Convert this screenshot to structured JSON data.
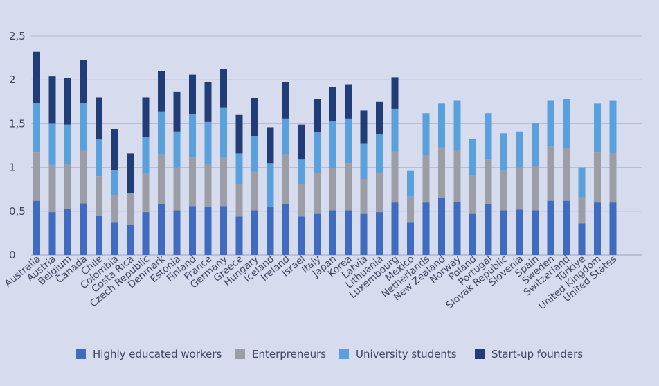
{
  "chart_data": {
    "type": "bar",
    "stacked": true,
    "title": "",
    "xlabel": "",
    "ylabel": "",
    "ylim": [
      0,
      2.5
    ],
    "yticks": [
      "0",
      "0,5",
      "1",
      "1,5",
      "2",
      "2,5"
    ],
    "ytick_values": [
      0,
      0.5,
      1,
      1.5,
      2,
      2.5
    ],
    "grid": true,
    "legend_position": "bottom",
    "categories": [
      "Australia",
      "Austria",
      "Belgium",
      "Canada",
      "Chile",
      "Colombia",
      "Costa Rica",
      "Czech Republic",
      "Denmark",
      "Estonia",
      "Finland",
      "France",
      "Germany",
      "Greece",
      "Hungary",
      "Iceland",
      "Ireland",
      "Israel",
      "Italy",
      "Japan",
      "Korea",
      "Latvia",
      "Lithuania",
      "Luxembourg",
      "Mexico",
      "Netherlands",
      "New Zealand",
      "Norway",
      "Poland",
      "Portugal",
      "Slovak Republic",
      "Slovenia",
      "Spain",
      "Sweden",
      "Switzerland",
      "Türkiye",
      "United Kingdom",
      "United States"
    ],
    "series": [
      {
        "name": "Highly educated workers",
        "color": "#3f6bc0",
        "values": [
          0.62,
          0.49,
          0.53,
          0.59,
          0.45,
          0.37,
          0.35,
          0.49,
          0.58,
          0.51,
          0.56,
          0.55,
          0.56,
          0.44,
          0.51,
          0.55,
          0.58,
          0.44,
          0.47,
          0.51,
          0.51,
          0.47,
          0.49,
          0.6,
          0.37,
          0.6,
          0.65,
          0.61,
          0.47,
          0.58,
          0.51,
          0.52,
          0.51,
          0.62,
          0.62,
          0.36,
          0.6,
          0.6
        ]
      },
      {
        "name": "Enterpreneurs",
        "color": "#9c9ea7",
        "values": [
          0.55,
          0.54,
          0.51,
          0.6,
          0.45,
          0.31,
          0.36,
          0.44,
          0.57,
          0.49,
          0.56,
          0.49,
          0.55,
          0.37,
          0.44,
          0.0,
          0.57,
          0.37,
          0.47,
          0.48,
          0.54,
          0.4,
          0.45,
          0.58,
          0.3,
          0.54,
          0.58,
          0.59,
          0.44,
          0.51,
          0.45,
          0.48,
          0.51,
          0.62,
          0.6,
          0.3,
          0.57,
          0.56
        ]
      },
      {
        "name": "University students",
        "color": "#5aa0dc",
        "values": [
          0.57,
          0.47,
          0.45,
          0.55,
          0.42,
          0.29,
          0.0,
          0.42,
          0.49,
          0.41,
          0.49,
          0.48,
          0.57,
          0.35,
          0.41,
          0.5,
          0.41,
          0.28,
          0.46,
          0.54,
          0.51,
          0.4,
          0.44,
          0.49,
          0.29,
          0.48,
          0.5,
          0.56,
          0.42,
          0.53,
          0.43,
          0.41,
          0.49,
          0.52,
          0.56,
          0.34,
          0.56,
          0.6
        ]
      },
      {
        "name": "Start-up founders",
        "color": "#213d77",
        "values": [
          0.58,
          0.54,
          0.53,
          0.49,
          0.48,
          0.47,
          0.45,
          0.45,
          0.46,
          0.45,
          0.45,
          0.45,
          0.44,
          0.44,
          0.43,
          0.41,
          0.41,
          0.4,
          0.38,
          0.39,
          0.39,
          0.38,
          0.37,
          0.36,
          0.0,
          0.0,
          0.0,
          0.0,
          0.0,
          0.0,
          0.0,
          0.0,
          0.0,
          0.0,
          0.0,
          0.0,
          0.0,
          0.0
        ]
      }
    ]
  }
}
